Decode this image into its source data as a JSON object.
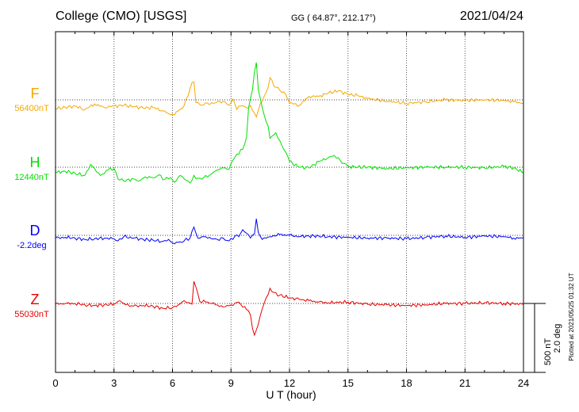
{
  "header": {
    "station": "College (CMO)  [USGS]",
    "coords": "GG ( 64.87°, 212.17°)",
    "date": "2021/04/24"
  },
  "plotted_note": "Plotted at 2021/05/25 01:32 UT",
  "scale": {
    "nt": "500 nT",
    "deg": "2.0 deg"
  },
  "chart_data": {
    "type": "line",
    "xlabel": "U T (hour)",
    "xlim": [
      0,
      24
    ],
    "xticks": [
      0,
      3,
      6,
      9,
      12,
      15,
      18,
      21,
      24
    ],
    "grid": true,
    "series": [
      {
        "name": "F",
        "baseline_label": "56400nT",
        "color": "#f5a800",
        "points": [
          [
            0,
            -65
          ],
          [
            0.5,
            -55
          ],
          [
            1,
            -45
          ],
          [
            1.5,
            -70
          ],
          [
            2,
            -30
          ],
          [
            2.5,
            -55
          ],
          [
            3,
            -45
          ],
          [
            3.5,
            -40
          ],
          [
            4,
            -50
          ],
          [
            4.5,
            -60
          ],
          [
            5,
            -55
          ],
          [
            5.5,
            -80
          ],
          [
            5.8,
            -100
          ],
          [
            6,
            -105
          ],
          [
            6.3,
            -80
          ],
          [
            6.6,
            -40
          ],
          [
            6.8,
            30
          ],
          [
            7,
            125
          ],
          [
            7.1,
            130
          ],
          [
            7.2,
            -20
          ],
          [
            7.5,
            -40
          ],
          [
            7.8,
            -25
          ],
          [
            8,
            -20
          ],
          [
            8.3,
            -15
          ],
          [
            8.6,
            -10
          ],
          [
            8.9,
            -40
          ],
          [
            9.1,
            5
          ],
          [
            9.3,
            -70
          ],
          [
            9.5,
            -45
          ],
          [
            9.8,
            -60
          ],
          [
            10,
            -40
          ],
          [
            10.2,
            -95
          ],
          [
            10.3,
            -125
          ],
          [
            10.5,
            -30
          ],
          [
            10.7,
            25
          ],
          [
            10.9,
            90
          ],
          [
            11,
            160
          ],
          [
            11.2,
            100
          ],
          [
            11.5,
            70
          ],
          [
            11.8,
            40
          ],
          [
            12,
            -20
          ],
          [
            12.5,
            -40
          ],
          [
            13,
            25
          ],
          [
            13.5,
            25
          ],
          [
            14,
            50
          ],
          [
            14.5,
            65
          ],
          [
            15,
            40
          ],
          [
            15.5,
            30
          ],
          [
            16,
            10
          ],
          [
            17,
            -10
          ],
          [
            18,
            -25
          ],
          [
            19,
            -15
          ],
          [
            20,
            0
          ],
          [
            21,
            -5
          ],
          [
            22,
            0
          ],
          [
            23,
            -5
          ],
          [
            23.5,
            -15
          ],
          [
            24,
            -25
          ]
        ]
      },
      {
        "name": "H",
        "baseline_label": "12440nT",
        "color": "#00e000",
        "points": [
          [
            0,
            -40
          ],
          [
            0.5,
            -30
          ],
          [
            1,
            -45
          ],
          [
            1.5,
            -60
          ],
          [
            1.8,
            20
          ],
          [
            2,
            -10
          ],
          [
            2.3,
            -60
          ],
          [
            2.7,
            -20
          ],
          [
            3,
            -10
          ],
          [
            3.2,
            -85
          ],
          [
            3.5,
            -100
          ],
          [
            4,
            -85
          ],
          [
            4.3,
            -100
          ],
          [
            4.6,
            -70
          ],
          [
            5,
            -75
          ],
          [
            5.3,
            -55
          ],
          [
            5.6,
            -90
          ],
          [
            5.9,
            -75
          ],
          [
            6.1,
            -110
          ],
          [
            6.4,
            -60
          ],
          [
            6.7,
            -95
          ],
          [
            6.9,
            -115
          ],
          [
            7.1,
            -60
          ],
          [
            7.3,
            -80
          ],
          [
            7.6,
            -75
          ],
          [
            8,
            -50
          ],
          [
            8.3,
            -20
          ],
          [
            8.6,
            -5
          ],
          [
            8.9,
            -15
          ],
          [
            9.1,
            50
          ],
          [
            9.3,
            95
          ],
          [
            9.6,
            130
          ],
          [
            9.8,
            220
          ],
          [
            9.9,
            430
          ],
          [
            10.1,
            560
          ],
          [
            10.2,
            690
          ],
          [
            10.3,
            760
          ],
          [
            10.4,
            560
          ],
          [
            10.5,
            500
          ],
          [
            10.7,
            380
          ],
          [
            10.9,
            300
          ],
          [
            11,
            210
          ],
          [
            11.3,
            250
          ],
          [
            11.6,
            160
          ],
          [
            11.8,
            110
          ],
          [
            12,
            40
          ],
          [
            12.5,
            0
          ],
          [
            13,
            -5
          ],
          [
            13.5,
            40
          ],
          [
            14,
            70
          ],
          [
            14.3,
            85
          ],
          [
            14.6,
            50
          ],
          [
            15,
            5
          ],
          [
            15.5,
            0
          ],
          [
            16,
            0
          ],
          [
            17,
            -10
          ],
          [
            18,
            -5
          ],
          [
            19,
            0
          ],
          [
            20,
            0
          ],
          [
            21,
            0
          ],
          [
            22,
            -5
          ],
          [
            23,
            5
          ],
          [
            23.5,
            -5
          ],
          [
            24,
            -40
          ]
        ]
      },
      {
        "name": "D",
        "baseline_label": "-2.2deg",
        "color": "#0000ff",
        "points": [
          [
            0,
            -20
          ],
          [
            0.5,
            -15
          ],
          [
            1,
            -20
          ],
          [
            1.5,
            -30
          ],
          [
            2,
            -25
          ],
          [
            2.5,
            -20
          ],
          [
            3,
            -25
          ],
          [
            3.2,
            -40
          ],
          [
            3.5,
            -10
          ],
          [
            4,
            -20
          ],
          [
            4.5,
            -30
          ],
          [
            5,
            -35
          ],
          [
            5.5,
            -45
          ],
          [
            5.8,
            -30
          ],
          [
            6,
            -55
          ],
          [
            6.3,
            -50
          ],
          [
            6.6,
            -40
          ],
          [
            6.9,
            -20
          ],
          [
            7.1,
            60
          ],
          [
            7.3,
            -20
          ],
          [
            7.6,
            -10
          ],
          [
            8,
            -25
          ],
          [
            8.3,
            -30
          ],
          [
            8.6,
            -20
          ],
          [
            8.9,
            -40
          ],
          [
            9.2,
            -5
          ],
          [
            9.4,
            -10
          ],
          [
            9.6,
            40
          ],
          [
            9.8,
            15
          ],
          [
            10,
            -20
          ],
          [
            10.2,
            10
          ],
          [
            10.3,
            120
          ],
          [
            10.4,
            20
          ],
          [
            10.6,
            -30
          ],
          [
            10.8,
            -20
          ],
          [
            11,
            -10
          ],
          [
            11.5,
            5
          ],
          [
            12,
            0
          ],
          [
            12.5,
            -10
          ],
          [
            13,
            -5
          ],
          [
            13.5,
            -5
          ],
          [
            14,
            -10
          ],
          [
            15,
            -15
          ],
          [
            16,
            -20
          ],
          [
            17,
            -20
          ],
          [
            18,
            -25
          ],
          [
            19,
            -15
          ],
          [
            20,
            -5
          ],
          [
            21,
            -15
          ],
          [
            22,
            -5
          ],
          [
            23,
            -10
          ],
          [
            23.5,
            -20
          ],
          [
            24,
            -20
          ]
        ]
      },
      {
        "name": "Z",
        "baseline_label": "55030nT",
        "color": "#e60000",
        "points": [
          [
            0,
            -5
          ],
          [
            0.5,
            0
          ],
          [
            1,
            0
          ],
          [
            1.5,
            -10
          ],
          [
            2,
            -15
          ],
          [
            2.5,
            -10
          ],
          [
            3,
            -5
          ],
          [
            3.3,
            20
          ],
          [
            3.6,
            -10
          ],
          [
            4,
            -20
          ],
          [
            4.5,
            -15
          ],
          [
            5,
            -20
          ],
          [
            5.5,
            -35
          ],
          [
            6,
            -30
          ],
          [
            6.3,
            -10
          ],
          [
            6.6,
            20
          ],
          [
            7,
            -5
          ],
          [
            7.1,
            160
          ],
          [
            7.2,
            120
          ],
          [
            7.4,
            15
          ],
          [
            7.8,
            10
          ],
          [
            8.2,
            -10
          ],
          [
            8.6,
            -25
          ],
          [
            9,
            -10
          ],
          [
            9.4,
            10
          ],
          [
            9.8,
            -45
          ],
          [
            10,
            -85
          ],
          [
            10.1,
            -180
          ],
          [
            10.2,
            -230
          ],
          [
            10.4,
            -150
          ],
          [
            10.6,
            -40
          ],
          [
            10.8,
            40
          ],
          [
            11,
            110
          ],
          [
            11.2,
            80
          ],
          [
            11.5,
            60
          ],
          [
            12,
            40
          ],
          [
            12.5,
            30
          ],
          [
            13,
            20
          ],
          [
            13.5,
            10
          ],
          [
            14,
            5
          ],
          [
            15,
            10
          ],
          [
            16,
            -5
          ],
          [
            17,
            -10
          ],
          [
            18,
            -15
          ],
          [
            19,
            -10
          ],
          [
            20,
            0
          ],
          [
            21,
            0
          ],
          [
            22,
            5
          ],
          [
            23,
            0
          ],
          [
            24,
            -5
          ]
        ]
      }
    ]
  }
}
